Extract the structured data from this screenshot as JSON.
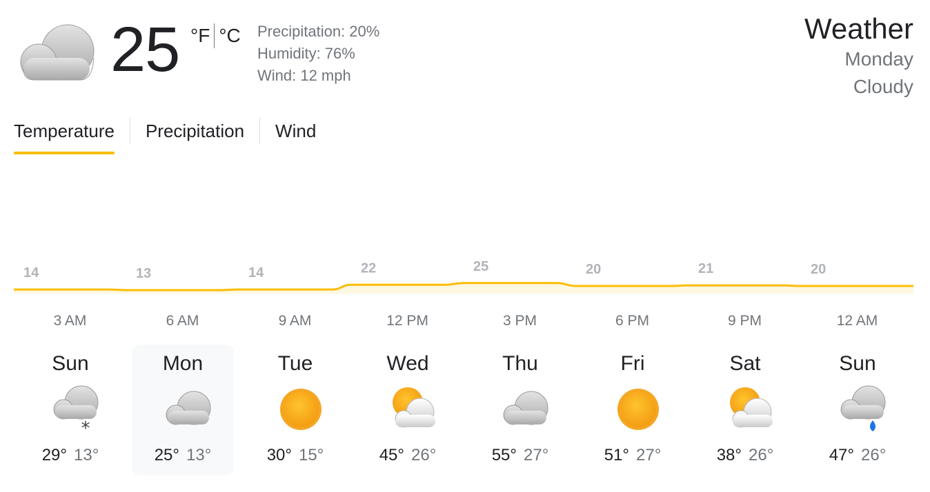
{
  "current": {
    "icon": "cloudy-icon",
    "temperature": "25",
    "unit_f": "°F",
    "unit_c": "°C",
    "precipitation": "Precipitation: 20%",
    "humidity": "Humidity: 76%",
    "wind": "Wind: 12 mph"
  },
  "header": {
    "title": "Weather",
    "day": "Monday",
    "condition": "Cloudy"
  },
  "tabs": [
    {
      "label": "Temperature",
      "active": true
    },
    {
      "label": "Precipitation",
      "active": false
    },
    {
      "label": "Wind",
      "active": false
    }
  ],
  "chart_data": {
    "type": "area",
    "x": [
      "3 AM",
      "6 AM",
      "9 AM",
      "12 PM",
      "3 PM",
      "6 PM",
      "9 PM",
      "12 AM"
    ],
    "values": [
      14,
      13,
      14,
      22,
      25,
      20,
      21,
      20
    ],
    "colors": {
      "line": "#fbbc04",
      "fill": "#fef7e0",
      "label": "#b0b3b8"
    }
  },
  "days": [
    {
      "name": "Sun",
      "icon": "cloud-snow-icon",
      "high": "29°",
      "low": "13°"
    },
    {
      "name": "Mon",
      "icon": "cloudy-icon",
      "high": "25°",
      "low": "13°",
      "selected": true
    },
    {
      "name": "Tue",
      "icon": "sunny-icon",
      "high": "30°",
      "low": "15°"
    },
    {
      "name": "Wed",
      "icon": "partly-cloudy-icon",
      "high": "45°",
      "low": "26°"
    },
    {
      "name": "Thu",
      "icon": "cloudy-icon",
      "high": "55°",
      "low": "27°"
    },
    {
      "name": "Fri",
      "icon": "sunny-icon",
      "high": "51°",
      "low": "27°"
    },
    {
      "name": "Sat",
      "icon": "partly-cloudy-icon",
      "high": "38°",
      "low": "26°"
    },
    {
      "name": "Sun",
      "icon": "cloud-rain-icon",
      "high": "47°",
      "low": "26°"
    }
  ]
}
